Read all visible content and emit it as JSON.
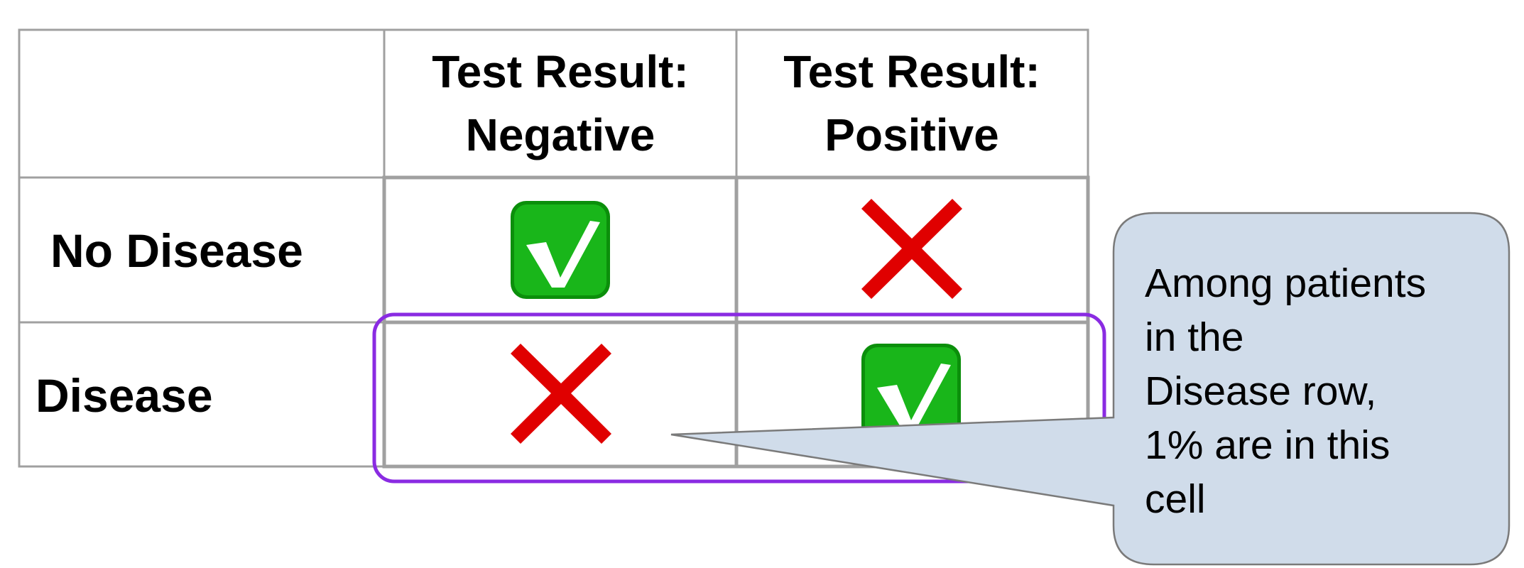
{
  "table": {
    "columns": [
      {
        "line1": "Test Result:",
        "line2": "Negative"
      },
      {
        "line1": "Test Result:",
        "line2": "Positive"
      }
    ],
    "rows": [
      {
        "label": "No Disease",
        "cells": [
          "check-mark-icon",
          "cross-mark-icon"
        ]
      },
      {
        "label": "Disease",
        "cells": [
          "cross-mark-icon",
          "check-mark-icon"
        ]
      }
    ]
  },
  "callout": {
    "lines": [
      "Among patients",
      "in the",
      "Disease row,",
      "1% are in this",
      "cell"
    ]
  },
  "colors": {
    "highlight": "#8a2be2",
    "callout_fill": "#d0dcea",
    "check_green": "#19b61a",
    "cross_red": "#e00000",
    "grid": "#a0a0a0"
  }
}
